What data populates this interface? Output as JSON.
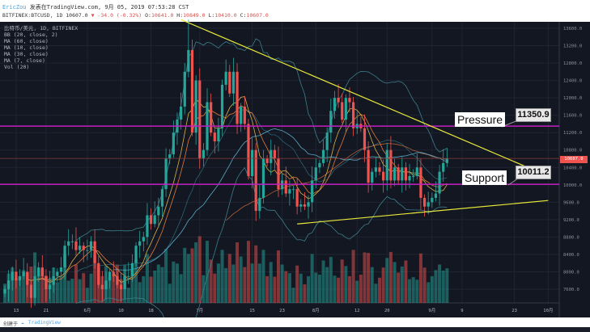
{
  "header": {
    "author": "EricZou",
    "published": "发表在TradingView.com, 9月 05, 2019 07:53:28 CST",
    "symbol_line": "BITFINEX:BTCUSD, 1D 10607.0",
    "change": "▼ -34.0 (-0.32%)",
    "o_label": "O:",
    "o": "10641.0",
    "h_label": "H:",
    "h": "10849.0",
    "l_label": "L:",
    "l": "10410.0",
    "c_label": "C:",
    "c": "10607.0"
  },
  "legend": [
    "比特币/美元, 1D, BITFINEX",
    "BB (20, close, 2)",
    "MA (60, close)",
    "MA (10, close)",
    "MA (30, close)",
    "MA (7, close)",
    "Vol (20)"
  ],
  "annotations": {
    "pressure_label": "Pressure",
    "pressure_value": "11350.9",
    "support_label": "Support",
    "support_value": "10011.2",
    "last_price": "10607.0"
  },
  "footer": {
    "created": "创建于",
    "brand": "TradingView"
  },
  "colors": {
    "bg": "#131722",
    "up": "#26a69a",
    "down": "#ef5350",
    "trend": "#e8e83a",
    "level": "#c21fc2",
    "bb": "#3d7f8a"
  },
  "chart_data": {
    "type": "candlestick",
    "symbol": "BTCUSD",
    "interval": "1D",
    "start_date": "2019-05-10",
    "y_ticks": [
      7600,
      8000,
      8400,
      8800,
      9200,
      9600,
      10000,
      10400,
      10800,
      11200,
      11600,
      12000,
      12400,
      12800,
      13200,
      13600
    ],
    "x_ticks": [
      "13",
      "21",
      "6月",
      "10",
      "18",
      "7月",
      "15",
      "23",
      "8月",
      "12",
      "20",
      "9月",
      "9",
      "23",
      "10月"
    ],
    "x_tick_days": [
      3,
      11,
      22,
      31,
      39,
      52,
      66,
      74,
      83,
      94,
      102,
      114,
      122,
      136,
      145
    ],
    "closes": [
      7600,
      7800,
      8000,
      7800,
      7900,
      8000,
      7700,
      7400,
      7900,
      8100,
      7900,
      7600,
      7700,
      7900,
      8000,
      8100,
      8600,
      8700,
      8700,
      8500,
      8600,
      8500,
      8500,
      8700,
      8200,
      7700,
      7600,
      7800,
      8000,
      7900,
      7700,
      7600,
      7900,
      7900,
      8200,
      8600,
      8700,
      8800,
      9300,
      9100,
      9300,
      9500,
      9900,
      10600,
      10700,
      11200,
      11500,
      11800,
      12600,
      13100,
      11200,
      12400,
      10600,
      10800,
      11900,
      11200,
      11000,
      11300,
      12300,
      12600,
      12100,
      12600,
      11400,
      11800,
      11400,
      10200,
      10800,
      9400,
      9700,
      10600,
      10500,
      10800,
      10600,
      9900,
      10100,
      9800,
      9900,
      9900,
      9500,
      9550,
      9500,
      9600,
      10100,
      10400,
      10500,
      10800,
      11200,
      11700,
      12000,
      11900,
      11500,
      12000,
      11900,
      11300,
      11400,
      11300,
      10800,
      10050,
      10300,
      10400,
      10300,
      10100,
      10800,
      10100,
      10400,
      10100,
      10400,
      10100,
      10200,
      10200,
      10400,
      9700,
      9500,
      9600,
      9700,
      9800,
      10300,
      10500,
      10607
    ],
    "levels": {
      "pressure": 11350.9,
      "support": 10011.2
    },
    "trendlines": [
      {
        "name": "upper",
        "from": {
          "day": 47,
          "price": 13800
        },
        "to": {
          "day": 145,
          "price": 10200
        }
      },
      {
        "name": "lower",
        "from": {
          "day": 78,
          "price": 9100
        },
        "to": {
          "day": 145,
          "price": 9640
        }
      }
    ],
    "moving_averages": [
      7,
      10,
      30,
      60
    ],
    "bollinger": {
      "period": 20,
      "mult": 2
    }
  }
}
